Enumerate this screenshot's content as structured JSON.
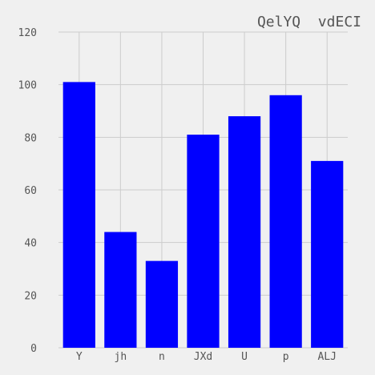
{
  "chart_data": {
    "type": "bar",
    "title": "QelYQ  vdECI",
    "xlabel": "",
    "ylabel": "",
    "categories": [
      "Y",
      "jh",
      "n",
      "JXd",
      "U",
      "p",
      "ALJ"
    ],
    "values": [
      101,
      44,
      33,
      81,
      88,
      96,
      71
    ],
    "ylim": [
      0,
      120
    ],
    "yticks": [
      0,
      20,
      40,
      60,
      80,
      100,
      120
    ],
    "grid": true,
    "legend": "none",
    "bar_color": "#0000ff",
    "grid_color": "#cccccc",
    "background_color": "#f0f0f0",
    "text_color": "#555555"
  }
}
